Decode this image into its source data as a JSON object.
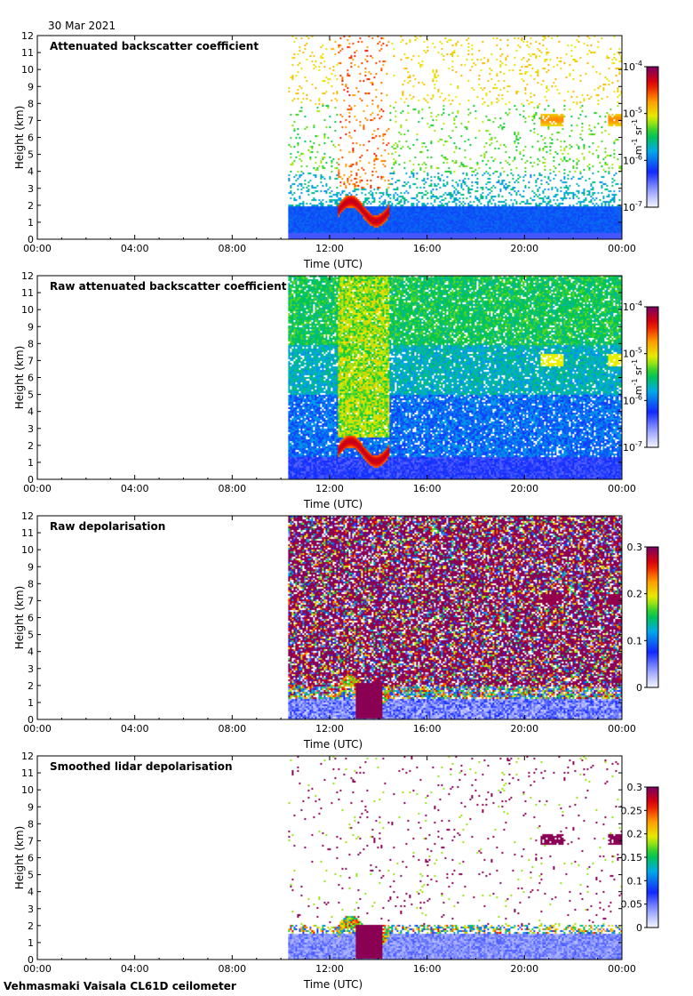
{
  "header": {
    "date": "30 Mar 2021"
  },
  "footer": {
    "site": "Vehmasmaki Vaisala CL61D ceilometer"
  },
  "colors": {
    "background": "#ffffff",
    "axis": "#000000",
    "no_data": "#ffffff"
  },
  "chart_data": [
    {
      "type": "heatmap",
      "title": "Attenuated backscatter coefficient",
      "xlabel": "Time (UTC)",
      "ylabel": "Height (km)",
      "x_ticks": [
        "00:00",
        "04:00",
        "08:00",
        "12:00",
        "16:00",
        "20:00",
        "00:00"
      ],
      "xlim_hours": [
        0,
        24
      ],
      "y_ticks": [
        0,
        1,
        2,
        3,
        4,
        5,
        6,
        7,
        8,
        9,
        10,
        11,
        12
      ],
      "ylim_km": [
        0,
        12
      ],
      "data_start_hour": 10.3,
      "colorbar": {
        "scale": "log",
        "label_base": "m",
        "label_exp1": "-1",
        "label_mid": " sr",
        "label_exp2": "-1",
        "ticks": [
          {
            "base": "10",
            "exp": "-7"
          },
          {
            "base": "10",
            "exp": "-6"
          },
          {
            "base": "10",
            "exp": "-5"
          },
          {
            "base": "10",
            "exp": "-4"
          }
        ]
      },
      "features": "boundary layer aerosol 0-2 km, cloud/rain 1-3 km around 12:30-14:30, sparse noise aloft, elevated layer ~7 km around 20:30-21:30 and 23:30"
    },
    {
      "type": "heatmap",
      "title": "Raw attenuated backscatter coefficient",
      "xlabel": "Time (UTC)",
      "ylabel": "Height (km)",
      "x_ticks": [
        "00:00",
        "04:00",
        "08:00",
        "12:00",
        "16:00",
        "20:00",
        "00:00"
      ],
      "xlim_hours": [
        0,
        24
      ],
      "y_ticks": [
        0,
        1,
        2,
        3,
        4,
        5,
        6,
        7,
        8,
        9,
        10,
        11,
        12
      ],
      "ylim_km": [
        0,
        12
      ],
      "data_start_hour": 10.3,
      "colorbar": {
        "scale": "log",
        "label_base": "m",
        "label_exp1": "-1",
        "label_mid": " sr",
        "label_exp2": "-1",
        "ticks": [
          {
            "base": "10",
            "exp": "-7"
          },
          {
            "base": "10",
            "exp": "-6"
          },
          {
            "base": "10",
            "exp": "-5"
          },
          {
            "base": "10",
            "exp": "-4"
          }
        ]
      },
      "features": "dense noise field green aloft fading to blue below, cloud/rain 1-2.5 km around 13:00-14:30"
    },
    {
      "type": "heatmap",
      "title": "Raw depolarisation",
      "xlabel": "Time (UTC)",
      "ylabel": "Height (km)",
      "x_ticks": [
        "00:00",
        "04:00",
        "08:00",
        "12:00",
        "16:00",
        "20:00",
        "00:00"
      ],
      "xlim_hours": [
        0,
        24
      ],
      "y_ticks": [
        0,
        1,
        2,
        3,
        4,
        5,
        6,
        7,
        8,
        9,
        10,
        11,
        12
      ],
      "ylim_km": [
        0,
        12
      ],
      "data_start_hour": 10.3,
      "colorbar": {
        "scale": "linear",
        "ticks": [
          "0",
          "0.1",
          "0.2",
          "0.3"
        ],
        "min": 0,
        "max": 0.3
      },
      "features": "saturated noise aloft, low depolarisation below 1.5 km, high depolarisation precipitation 13:00-14:00"
    },
    {
      "type": "heatmap",
      "title": "Smoothed lidar depolarisation",
      "xlabel": "Time (UTC)",
      "ylabel": "Height (km)",
      "x_ticks": [
        "00:00",
        "04:00",
        "08:00",
        "12:00",
        "16:00",
        "20:00",
        "00:00"
      ],
      "xlim_hours": [
        0,
        24
      ],
      "y_ticks": [
        0,
        1,
        2,
        3,
        4,
        5,
        6,
        7,
        8,
        9,
        10,
        11,
        12
      ],
      "ylim_km": [
        0,
        12
      ],
      "data_start_hour": 10.3,
      "colorbar": {
        "scale": "linear",
        "ticks": [
          "0",
          "0.05",
          "0.1",
          "0.15",
          "0.2",
          "0.25",
          "0.3"
        ],
        "min": 0,
        "max": 0.3
      },
      "features": "sparse high values aloft, low depolarisation boundary layer, high depolarisation precipitation 13:00-14:00, layer ~7 km around 21:00"
    }
  ]
}
